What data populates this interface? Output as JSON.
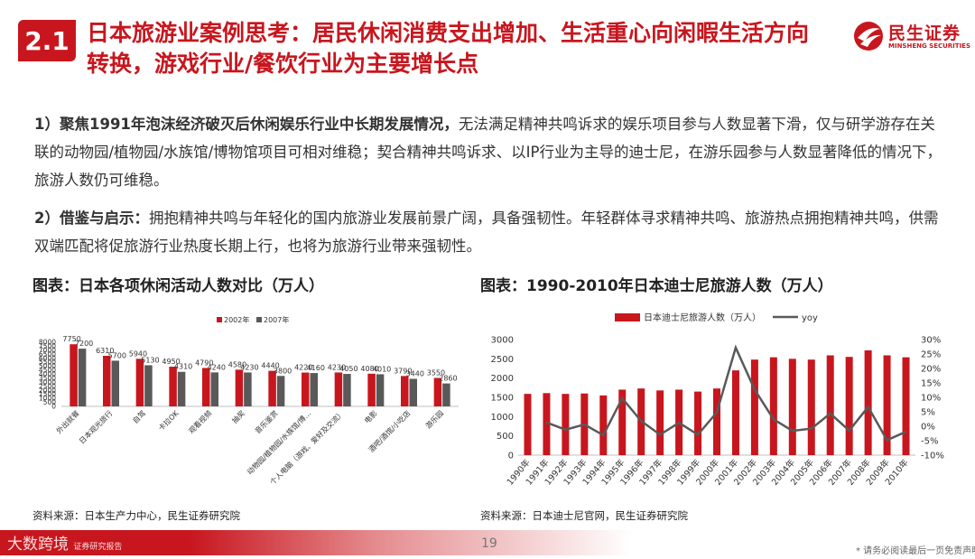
{
  "header": {
    "badge": "2.1",
    "title": "日本旅游业案例思考：居民休闲消费支出增加、生活重心向闲暇生活方向转换，游戏行业/餐饮行业为主要增长点",
    "logo_cn": "民生证券",
    "logo_en": "MINSHENG SECURITIES"
  },
  "body": {
    "p1_bold": "1）聚焦1991年泡沫经济破灭后休闲娱乐行业中长期发展情况，",
    "p1_text": "无法满足精神共鸣诉求的娱乐项目参与人数显著下滑，仅与研学游存在关联的动物园/植物园/水族馆/博物馆项目可相对维稳；契合精神共鸣诉求、以IP行业为主导的迪士尼，在游乐园参与人数显著降低的情况下，旅游人数仍可维稳。",
    "p2_bold": "2）借鉴与启示：",
    "p2_text": "拥抱精神共鸣与年轻化的国内旅游业发展前景广阔，具备强韧性。年轻群体寻求精神共鸣、旅游热点拥抱精神共鸣，供需双端匹配将促旅游行业热度长期上行，也将为旅游行业带来强韧性。"
  },
  "chart1_title": "图表：日本各项休闲活动人数对比（万人）",
  "chart2_title": "图表：1990-2010年日本迪士尼旅游人数（万人）",
  "chart1_source": "资料来源：日本生产力中心，民生证券研究院",
  "chart2_source": "资料来源：日本迪士尼官网，民生证券研究院",
  "footer": {
    "watermark": "大数跨境",
    "watermark_sub": "证券研究报告",
    "page_number": "19",
    "disclaimer": "* 请务必阅读最后一页免责声明"
  },
  "chart_data": [
    {
      "type": "bar",
      "categories": [
        "外出就餐",
        "日本观光旅行",
        "自驾",
        "卡拉OK",
        "观看视频",
        "抽奖",
        "音乐鉴赏",
        "动物园/植物园/水族馆/博…",
        "个人电脑（游戏、爱好及交流）",
        "电影",
        "酒吧/酒馆/小吃店",
        "游乐园"
      ],
      "series": [
        {
          "name": "2002年",
          "color": "#c8161e",
          "values": [
            7750,
            6310,
            5940,
            4950,
            4790,
            4580,
            4440,
            4220,
            4230,
            4080,
            3790,
            3550
          ]
        },
        {
          "name": "2007年",
          "color": "#595959",
          "values": [
            7200,
            5700,
            5130,
            4310,
            4240,
            4230,
            3800,
            4160,
            4050,
            4010,
            3440,
            2860
          ]
        }
      ],
      "ylim": [
        0,
        8000
      ],
      "yticks": [
        0,
        500,
        1000,
        1500,
        2000,
        2500,
        3000,
        3500,
        4000,
        4500,
        5000,
        5500,
        6000,
        6500,
        7000,
        7500,
        8000
      ],
      "legend": "top-right",
      "grid": false
    },
    {
      "type": "bar",
      "categories": [
        "1990年",
        "1991年",
        "1992年",
        "1993年",
        "1994年",
        "1995年",
        "1996年",
        "1997年",
        "1998年",
        "1999年",
        "2000年",
        "2001年",
        "2002年",
        "2003年",
        "2004年",
        "2005年",
        "2006年",
        "2007年",
        "2008年",
        "2009年",
        "2010年"
      ],
      "series": [
        {
          "name": "日本迪士尼旅游人数（万人）",
          "type": "bar",
          "color": "#c8161e",
          "values": [
            1590,
            1610,
            1590,
            1600,
            1550,
            1700,
            1730,
            1680,
            1700,
            1650,
            1730,
            2200,
            2480,
            2540,
            2500,
            2480,
            2590,
            2550,
            2720,
            2590,
            2540
          ]
        },
        {
          "name": "yoy",
          "type": "line",
          "axis": "right",
          "color": "#595959",
          "values": [
            null,
            1.3,
            -1.2,
            0.6,
            -3.1,
            9.7,
            1.8,
            -2.9,
            1.2,
            -2.9,
            4.8,
            27.2,
            12.7,
            2.4,
            -1.6,
            -0.8,
            4.4,
            -1.5,
            6.7,
            -4.8,
            -1.9
          ]
        }
      ],
      "ylim": [
        0,
        3000
      ],
      "yticks": [
        0,
        500,
        1000,
        1500,
        2000,
        2500,
        3000
      ],
      "y2lim": [
        -10,
        30
      ],
      "y2ticks": [
        "-10%",
        "-5%",
        "0%",
        "5%",
        "10%",
        "15%",
        "20%",
        "25%",
        "30%"
      ],
      "legend": "top",
      "grid": false
    }
  ]
}
